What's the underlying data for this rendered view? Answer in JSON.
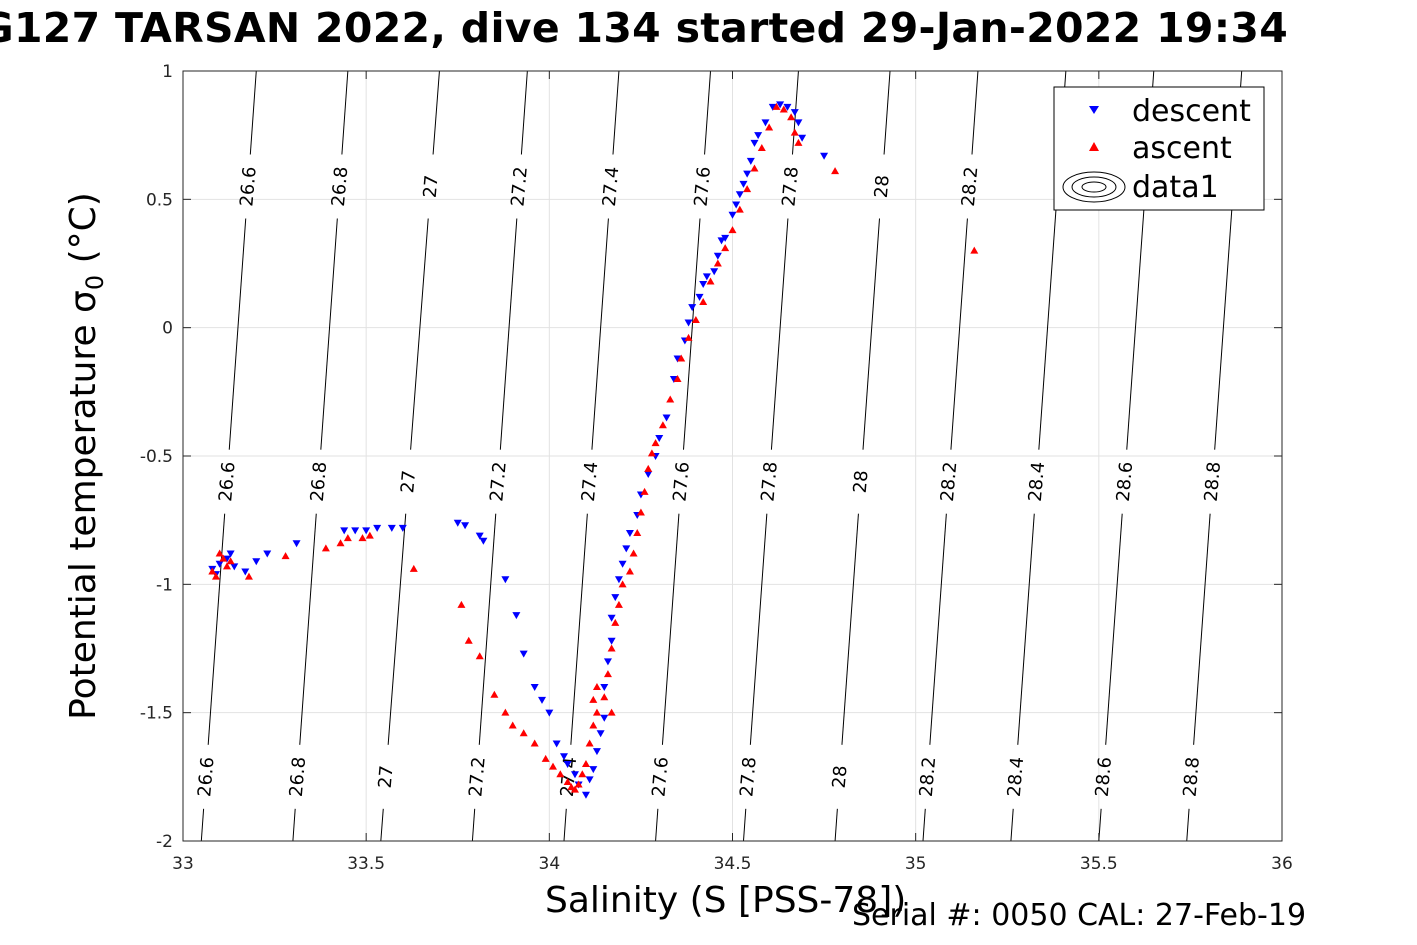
{
  "chart_data": {
    "type": "scatter",
    "title": "G127 TARSAN 2022, dive 134 started 29-Jan-2022 19:34",
    "xlabel": "Salinity (S [PSS-78])",
    "ylabel_main": "Potential temperature",
    "ylabel_symbol": "σ",
    "ylabel_sub": "0",
    "ylabel_unit": "(°C)",
    "footer": "Serial #: 0050  CAL: 27-Feb-19",
    "xlim": [
      33,
      36
    ],
    "ylim": [
      -2,
      1
    ],
    "xticks": [
      33,
      33.5,
      34,
      34.5,
      35,
      35.5,
      36
    ],
    "xtick_labels": [
      "33",
      "33.5",
      "34",
      "34.5",
      "35",
      "35.5",
      "36"
    ],
    "yticks": [
      -2,
      -1.5,
      -1,
      -0.5,
      0,
      0.5,
      1
    ],
    "ytick_labels": [
      "-2",
      "-1.5",
      "-1",
      "-0.5",
      "0",
      "0.5",
      "1"
    ],
    "grid": true,
    "legend_position": "top-right",
    "isopycnals": {
      "levels": [
        26.6,
        26.8,
        27,
        27.2,
        27.4,
        27.6,
        27.8,
        28,
        28.2,
        28.4,
        28.6,
        28.8
      ],
      "labels": [
        "26.6",
        "26.8",
        "27",
        "27.2",
        "27.4",
        "27.6",
        "27.8",
        "28",
        "28.2",
        "28.4",
        "28.6",
        "28.8"
      ],
      "salinity_at_bottom": [
        33.05,
        33.3,
        33.54,
        33.79,
        34.04,
        34.29,
        34.53,
        34.78,
        35.02,
        35.26,
        35.5,
        35.74
      ],
      "salinity_at_top": [
        33.2,
        33.45,
        33.7,
        33.94,
        34.19,
        34.44,
        34.68,
        34.93,
        35.17,
        35.41,
        35.65,
        35.89
      ],
      "label_rows_temp": [
        -1.75,
        -0.6,
        0.55
      ],
      "label_rows_levels": [
        [
          26.6,
          26.8,
          27,
          27.2,
          27.4,
          27.6,
          27.8,
          28,
          28.2,
          28.4,
          28.6,
          28.8
        ],
        [
          26.6,
          26.8,
          27,
          27.2,
          27.4,
          27.6,
          27.8,
          28,
          28.2,
          28.4,
          28.6,
          28.8
        ],
        [
          26.6,
          26.8,
          27,
          27.2,
          27.4,
          27.6,
          27.8,
          28,
          28.2
        ]
      ]
    },
    "series": [
      {
        "name": "descent",
        "marker": "triangle-down",
        "color": "#0000ff",
        "points": [
          [
            33.08,
            -0.94
          ],
          [
            33.09,
            -0.96
          ],
          [
            33.1,
            -0.92
          ],
          [
            33.12,
            -0.9
          ],
          [
            33.13,
            -0.88
          ],
          [
            33.14,
            -0.93
          ],
          [
            33.17,
            -0.95
          ],
          [
            33.2,
            -0.91
          ],
          [
            33.23,
            -0.88
          ],
          [
            33.31,
            -0.84
          ],
          [
            33.44,
            -0.79
          ],
          [
            33.47,
            -0.79
          ],
          [
            33.5,
            -0.79
          ],
          [
            33.53,
            -0.78
          ],
          [
            33.57,
            -0.78
          ],
          [
            33.6,
            -0.78
          ],
          [
            33.75,
            -0.76
          ],
          [
            33.77,
            -0.77
          ],
          [
            33.81,
            -0.81
          ],
          [
            33.82,
            -0.83
          ],
          [
            33.88,
            -0.98
          ],
          [
            33.91,
            -1.12
          ],
          [
            33.93,
            -1.27
          ],
          [
            33.96,
            -1.4
          ],
          [
            33.98,
            -1.45
          ],
          [
            34.0,
            -1.5
          ],
          [
            34.02,
            -1.62
          ],
          [
            34.04,
            -1.67
          ],
          [
            34.05,
            -1.7
          ],
          [
            34.07,
            -1.74
          ],
          [
            34.08,
            -1.78
          ],
          [
            34.1,
            -1.82
          ],
          [
            34.11,
            -1.76
          ],
          [
            34.12,
            -1.72
          ],
          [
            34.13,
            -1.65
          ],
          [
            34.14,
            -1.58
          ],
          [
            34.15,
            -1.52
          ],
          [
            34.15,
            -1.4
          ],
          [
            34.16,
            -1.3
          ],
          [
            34.17,
            -1.22
          ],
          [
            34.17,
            -1.13
          ],
          [
            34.18,
            -1.05
          ],
          [
            34.19,
            -0.98
          ],
          [
            34.2,
            -0.92
          ],
          [
            34.21,
            -0.86
          ],
          [
            34.22,
            -0.8
          ],
          [
            34.24,
            -0.73
          ],
          [
            34.25,
            -0.65
          ],
          [
            34.27,
            -0.57
          ],
          [
            34.29,
            -0.5
          ],
          [
            34.3,
            -0.43
          ],
          [
            34.32,
            -0.35
          ],
          [
            34.34,
            -0.2
          ],
          [
            34.35,
            -0.12
          ],
          [
            34.37,
            -0.05
          ],
          [
            34.38,
            0.02
          ],
          [
            34.39,
            0.08
          ],
          [
            34.41,
            0.12
          ],
          [
            34.42,
            0.17
          ],
          [
            34.43,
            0.2
          ],
          [
            34.45,
            0.22
          ],
          [
            34.46,
            0.28
          ],
          [
            34.47,
            0.34
          ],
          [
            34.48,
            0.35
          ],
          [
            34.5,
            0.44
          ],
          [
            34.51,
            0.48
          ],
          [
            34.52,
            0.52
          ],
          [
            34.53,
            0.56
          ],
          [
            34.54,
            0.6
          ],
          [
            34.55,
            0.65
          ],
          [
            34.56,
            0.72
          ],
          [
            34.57,
            0.75
          ],
          [
            34.59,
            0.8
          ],
          [
            34.61,
            0.86
          ],
          [
            34.63,
            0.87
          ],
          [
            34.65,
            0.86
          ],
          [
            34.67,
            0.84
          ],
          [
            34.68,
            0.8
          ],
          [
            34.69,
            0.74
          ],
          [
            34.75,
            0.67
          ]
        ]
      },
      {
        "name": "ascent",
        "marker": "triangle-up",
        "color": "#ff0000",
        "points": [
          [
            33.08,
            -0.95
          ],
          [
            33.09,
            -0.97
          ],
          [
            33.1,
            -0.88
          ],
          [
            33.11,
            -0.9
          ],
          [
            33.12,
            -0.93
          ],
          [
            33.13,
            -0.91
          ],
          [
            33.18,
            -0.97
          ],
          [
            33.28,
            -0.89
          ],
          [
            33.39,
            -0.86
          ],
          [
            33.43,
            -0.84
          ],
          [
            33.45,
            -0.82
          ],
          [
            33.49,
            -0.82
          ],
          [
            33.51,
            -0.81
          ],
          [
            33.63,
            -0.94
          ],
          [
            33.76,
            -1.08
          ],
          [
            33.78,
            -1.22
          ],
          [
            33.81,
            -1.28
          ],
          [
            33.85,
            -1.43
          ],
          [
            33.88,
            -1.5
          ],
          [
            33.9,
            -1.55
          ],
          [
            33.93,
            -1.58
          ],
          [
            33.96,
            -1.62
          ],
          [
            33.99,
            -1.68
          ],
          [
            34.01,
            -1.71
          ],
          [
            34.03,
            -1.74
          ],
          [
            34.05,
            -1.77
          ],
          [
            34.06,
            -1.79
          ],
          [
            34.07,
            -1.8
          ],
          [
            34.08,
            -1.78
          ],
          [
            34.09,
            -1.74
          ],
          [
            34.1,
            -1.7
          ],
          [
            34.11,
            -1.62
          ],
          [
            34.12,
            -1.55
          ],
          [
            34.13,
            -1.5
          ],
          [
            34.12,
            -1.45
          ],
          [
            34.13,
            -1.4
          ],
          [
            34.15,
            -1.44
          ],
          [
            34.17,
            -1.5
          ],
          [
            34.16,
            -1.35
          ],
          [
            34.17,
            -1.25
          ],
          [
            34.18,
            -1.15
          ],
          [
            34.19,
            -1.08
          ],
          [
            34.2,
            -1.0
          ],
          [
            34.22,
            -0.95
          ],
          [
            34.23,
            -0.88
          ],
          [
            34.24,
            -0.8
          ],
          [
            34.25,
            -0.72
          ],
          [
            34.26,
            -0.64
          ],
          [
            34.27,
            -0.55
          ],
          [
            34.28,
            -0.49
          ],
          [
            34.29,
            -0.45
          ],
          [
            34.31,
            -0.38
          ],
          [
            34.33,
            -0.28
          ],
          [
            34.35,
            -0.2
          ],
          [
            34.36,
            -0.12
          ],
          [
            34.38,
            -0.04
          ],
          [
            34.4,
            0.03
          ],
          [
            34.42,
            0.1
          ],
          [
            34.44,
            0.18
          ],
          [
            34.46,
            0.25
          ],
          [
            34.48,
            0.31
          ],
          [
            34.5,
            0.38
          ],
          [
            34.52,
            0.46
          ],
          [
            34.54,
            0.54
          ],
          [
            34.56,
            0.62
          ],
          [
            34.58,
            0.7
          ],
          [
            34.6,
            0.78
          ],
          [
            34.62,
            0.86
          ],
          [
            34.64,
            0.85
          ],
          [
            34.66,
            0.82
          ],
          [
            34.67,
            0.76
          ],
          [
            34.68,
            0.72
          ],
          [
            34.78,
            0.61
          ],
          [
            35.16,
            0.3
          ]
        ]
      },
      {
        "name": "data1",
        "marker": "contour-ellipses",
        "color": "#000000",
        "points": []
      }
    ]
  },
  "legend": {
    "entries": [
      "descent",
      "ascent",
      "data1"
    ]
  }
}
